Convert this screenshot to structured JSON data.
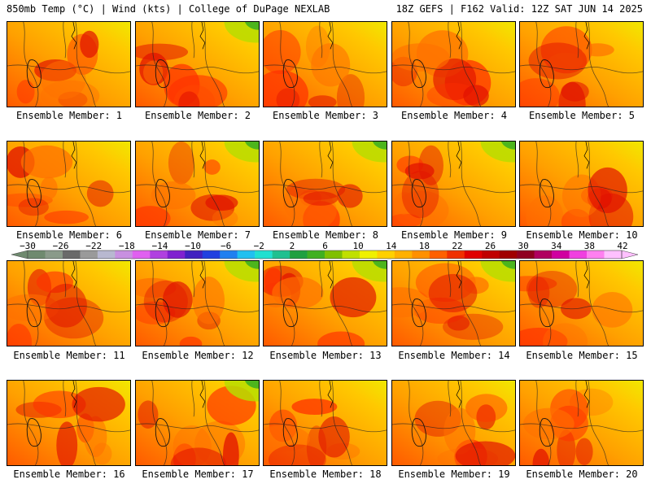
{
  "header": {
    "left": "850mb Temp (°C) | Wind (kts) | College of DuPage NEXLAB",
    "right": "18Z GEFS | F162 Valid: 12Z SAT JUN 14 2025"
  },
  "panels": [
    {
      "label": "Ensemble Member: 1"
    },
    {
      "label": "Ensemble Member: 2"
    },
    {
      "label": "Ensemble Member: 3"
    },
    {
      "label": "Ensemble Member: 4"
    },
    {
      "label": "Ensemble Member: 5"
    },
    {
      "label": "Ensemble Member: 6"
    },
    {
      "label": "Ensemble Member: 7"
    },
    {
      "label": "Ensemble Member: 8"
    },
    {
      "label": "Ensemble Member: 9"
    },
    {
      "label": "Ensemble Member: 10"
    },
    {
      "label": "Ensemble Member: 11"
    },
    {
      "label": "Ensemble Member: 12"
    },
    {
      "label": "Ensemble Member: 13"
    },
    {
      "label": "Ensemble Member: 14"
    },
    {
      "label": "Ensemble Member: 15"
    },
    {
      "label": "Ensemble Member: 16"
    },
    {
      "label": "Ensemble Member: 17"
    },
    {
      "label": "Ensemble Member: 18"
    },
    {
      "label": "Ensemble Member: 19"
    },
    {
      "label": "Ensemble Member: 20"
    }
  ],
  "colorbar": {
    "tick_labels": [
      "−30",
      "−26",
      "−22",
      "−18",
      "−14",
      "−10",
      "−6",
      "−2",
      "2",
      "6",
      "10",
      "14",
      "18",
      "22",
      "26",
      "30",
      "34",
      "38",
      "42"
    ],
    "colors": [
      "#6f8a6f",
      "#8a9a8a",
      "#6a6a6a",
      "#9a9a9a",
      "#b8b8d0",
      "#c890e0",
      "#e060f0",
      "#b040e0",
      "#8020d0",
      "#4020c0",
      "#2040e0",
      "#2080f0",
      "#20c0f0",
      "#20e0d0",
      "#20c090",
      "#20a040",
      "#40b020",
      "#80c000",
      "#c0e000",
      "#f0f000",
      "#ffd000",
      "#ffb000",
      "#ff9000",
      "#ff6000",
      "#f03000",
      "#e00000",
      "#c00000",
      "#a00000",
      "#900020",
      "#b00060",
      "#d000a0",
      "#f040e0",
      "#ff80f0",
      "#ffc0ff"
    ]
  }
}
